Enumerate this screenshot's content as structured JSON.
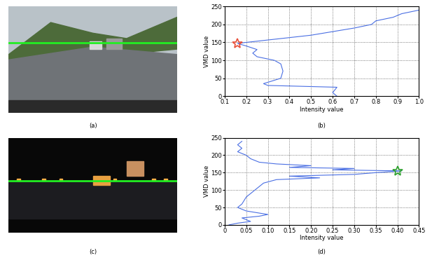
{
  "images": [
    {
      "caption": "(a)"
    },
    {
      "caption": "(c)"
    }
  ],
  "chart_data": [
    {
      "type": "line",
      "caption": "(b)",
      "x_label": "Intensity value",
      "y_label": "VMD value",
      "x": [
        0.62,
        0.6,
        0.62,
        0.3,
        0.28,
        0.36,
        0.37,
        0.36,
        0.33,
        0.25,
        0.23,
        0.25,
        0.2,
        0.16,
        0.2,
        0.35,
        0.5,
        0.6,
        0.7,
        0.78,
        0.8,
        0.88,
        0.92,
        1.0
      ],
      "values": [
        0,
        10,
        25,
        30,
        35,
        50,
        70,
        90,
        100,
        110,
        120,
        130,
        140,
        147,
        150,
        160,
        170,
        180,
        190,
        200,
        210,
        220,
        230,
        240
      ],
      "color": "#4a6fe3",
      "xlim": [
        0.1,
        1.0
      ],
      "xticks": [
        0.1,
        0.2,
        0.3,
        0.4,
        0.5,
        0.6,
        0.7,
        0.8,
        0.9,
        1.0
      ],
      "ylim": [
        0,
        250
      ],
      "yticks": [
        0,
        50,
        100,
        150,
        200,
        250
      ],
      "grid": true,
      "highlight": {
        "x": 0.16,
        "y": 147,
        "color": "#e8503a",
        "marker": "star"
      }
    },
    {
      "type": "line",
      "caption": "(d)",
      "x_label": "Intensity value",
      "y_label": "VMD value",
      "x": [
        0.01,
        0.03,
        0.06,
        0.04,
        0.08,
        0.1,
        0.05,
        0.03,
        0.04,
        0.05,
        0.07,
        0.09,
        0.12,
        0.22,
        0.15,
        0.3,
        0.35,
        0.41,
        0.25,
        0.3,
        0.15,
        0.2,
        0.12,
        0.08,
        0.06,
        0.05,
        0.03,
        0.04,
        0.03,
        0.04
      ],
      "values": [
        0,
        5,
        10,
        20,
        25,
        30,
        40,
        50,
        60,
        80,
        100,
        120,
        130,
        135,
        140,
        145,
        150,
        155,
        158,
        162,
        165,
        170,
        175,
        180,
        190,
        200,
        210,
        220,
        230,
        240
      ],
      "color": "#4a6fe3",
      "xlim": [
        0,
        0.45
      ],
      "xticks": [
        0,
        0.05,
        {
          "value": 0.1,
          "label": "0.10"
        },
        0.15,
        {
          "value": 0.2,
          "label": "0.20"
        },
        0.25,
        {
          "value": 0.3,
          "label": "0.30"
        },
        0.35,
        {
          "value": 0.4,
          "label": "0.40"
        },
        0.45
      ],
      "ylim": [
        0,
        250
      ],
      "yticks": [
        0,
        50,
        100,
        150,
        200,
        250
      ],
      "grid": true,
      "highlight": {
        "x": 0.4,
        "y": 154,
        "color": "#2ca02c",
        "marker": "star"
      }
    }
  ]
}
